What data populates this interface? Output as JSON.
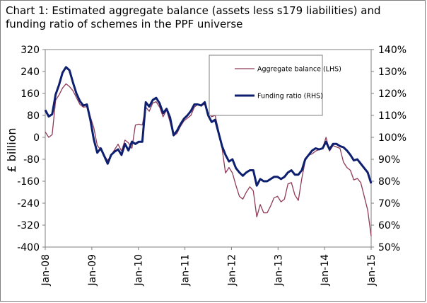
{
  "chart_data": {
    "type": "line",
    "title": "Chart 1: Estimated aggregate balance (assets less s179 liabilities) and funding ratio of schemes in the PPF universe",
    "ylabel": "£ billion",
    "y2label": "",
    "ylim": [
      -400,
      320
    ],
    "y2lim": [
      50,
      140
    ],
    "yticks": [
      "320",
      "240",
      "160",
      "80",
      "0",
      "-80",
      "-160",
      "-240",
      "-320",
      "-400"
    ],
    "y2ticks": [
      "140%",
      "130%",
      "120%",
      "110%",
      "100%",
      "90%",
      "80%",
      "70%",
      "60%",
      "50%"
    ],
    "xticks": [
      "Jan-08",
      "Jan-09",
      "Jan-10",
      "Jan-11",
      "Jan-12",
      "Jan-13",
      "Jan-14",
      "Jan-15"
    ],
    "x_start": "Jan-08",
    "x_end": "Jan-15",
    "legend_position": "top-right",
    "series": [
      {
        "name": "Aggregate balance (LHS)",
        "axis": "left",
        "color": "#8e3a59",
        "values": [
          20,
          0,
          10,
          135,
          155,
          180,
          195,
          185,
          170,
          145,
          120,
          110,
          112,
          75,
          35,
          -30,
          -45,
          -65,
          -85,
          -65,
          -45,
          -25,
          -50,
          -10,
          -20,
          -40,
          45,
          48,
          45,
          110,
          95,
          125,
          130,
          110,
          75,
          100,
          55,
          5,
          15,
          40,
          60,
          70,
          80,
          110,
          120,
          118,
          120,
          90,
          75,
          80,
          25,
          -40,
          -130,
          -110,
          -130,
          -175,
          -215,
          -225,
          -200,
          -180,
          -195,
          -290,
          -245,
          -275,
          -275,
          -250,
          -220,
          -215,
          -235,
          -225,
          -170,
          -165,
          -210,
          -230,
          -150,
          -85,
          -65,
          -60,
          -50,
          -45,
          -40,
          0,
          -50,
          -30,
          -35,
          -40,
          -90,
          -110,
          -120,
          -155,
          -150,
          -165,
          -215,
          -265,
          -360
        ]
      },
      {
        "name": "Funding ratio (RHS)",
        "axis": "right",
        "color": "#0d1f6e",
        "values": [
          112.5,
          109.5,
          110.5,
          119.5,
          124,
          129.5,
          132,
          130.5,
          125,
          120,
          116.5,
          114.5,
          115,
          108,
          99,
          93,
          95,
          91.5,
          88,
          92,
          93.5,
          94.5,
          92,
          97,
          94,
          98,
          97,
          98,
          98,
          116,
          114,
          117,
          118,
          115.5,
          111,
          113,
          109,
          101,
          103,
          106,
          108.5,
          110,
          112,
          115,
          115,
          114.5,
          116,
          110,
          107,
          108,
          102,
          96,
          92,
          89,
          90,
          86,
          84,
          82.5,
          84,
          85,
          85,
          78,
          81,
          80,
          80,
          81,
          82,
          82,
          81,
          82,
          84,
          85,
          83,
          83,
          85,
          90,
          92,
          94,
          95,
          94.5,
          95,
          98,
          94.5,
          97,
          97,
          96,
          95.5,
          94,
          92,
          89.5,
          90,
          88,
          86,
          84,
          79
        ]
      }
    ]
  }
}
